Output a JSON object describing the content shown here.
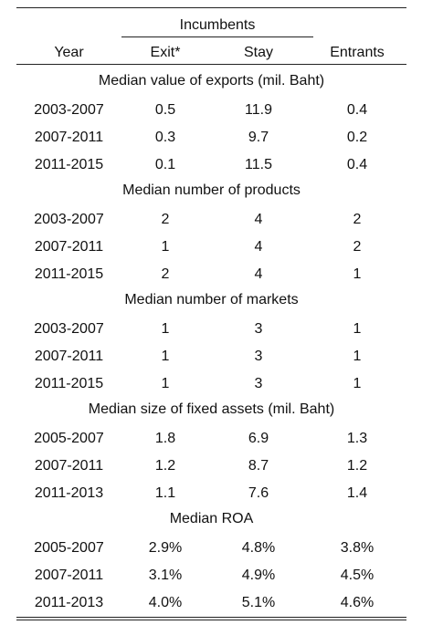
{
  "header": {
    "group_label": "Incumbents",
    "columns": [
      "Year",
      "Exit*",
      "Stay",
      "Entrants"
    ]
  },
  "sections": [
    {
      "title": "Median value of exports (mil. Baht)",
      "rows": [
        [
          "2003-2007",
          "0.5",
          "11.9",
          "0.4"
        ],
        [
          "2007-2011",
          "0.3",
          "9.7",
          "0.2"
        ],
        [
          "2011-2015",
          "0.1",
          "11.5",
          "0.4"
        ]
      ]
    },
    {
      "title": "Median number of products",
      "rows": [
        [
          "2003-2007",
          "2",
          "4",
          "2"
        ],
        [
          "2007-2011",
          "1",
          "4",
          "2"
        ],
        [
          "2011-2015",
          "2",
          "4",
          "1"
        ]
      ]
    },
    {
      "title": "Median number of markets",
      "rows": [
        [
          "2003-2007",
          "1",
          "3",
          "1"
        ],
        [
          "2007-2011",
          "1",
          "3",
          "1"
        ],
        [
          "2011-2015",
          "1",
          "3",
          "1"
        ]
      ]
    },
    {
      "title": "Median size of fixed assets (mil. Baht)",
      "rows": [
        [
          "2005-2007",
          "1.8",
          "6.9",
          "1.3"
        ],
        [
          "2007-2011",
          "1.2",
          "8.7",
          "1.2"
        ],
        [
          "2011-2013",
          "1.1",
          "7.6",
          "1.4"
        ]
      ]
    },
    {
      "title": "Median ROA",
      "rows": [
        [
          "2005-2007",
          "2.9%",
          "4.8%",
          "3.8%"
        ],
        [
          "2007-2011",
          "3.1%",
          "4.9%",
          "4.5%"
        ],
        [
          "2011-2013",
          "4.0%",
          "5.1%",
          "4.6%"
        ]
      ]
    }
  ]
}
